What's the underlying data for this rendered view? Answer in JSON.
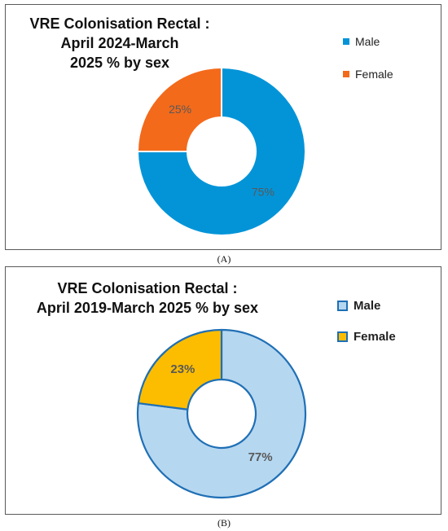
{
  "chart_data": [
    {
      "type": "pie",
      "title_lines": [
        "VRE Colonisation Rectal :",
        "April 2024-March",
        "2025 % by sex"
      ],
      "categories": [
        "Male",
        "Female"
      ],
      "values": [
        75,
        25
      ],
      "labels": [
        "75%",
        "25%"
      ],
      "colors": [
        "#0394d8",
        "#f36a1b"
      ],
      "slice_stroke": "#ffffff",
      "legend": {
        "position": "right",
        "entries": [
          "Male",
          "Female"
        ]
      },
      "caption": "(A)"
    },
    {
      "type": "pie",
      "title_lines": [
        "VRE Colonisation Rectal :",
        "April 2019-March 2025 % by sex"
      ],
      "categories": [
        "Male",
        "Female"
      ],
      "values": [
        77,
        23
      ],
      "labels": [
        "77%",
        "23%"
      ],
      "colors": [
        "#b6d7f0",
        "#fcbd00"
      ],
      "slice_stroke": "#1f6fb5",
      "legend": {
        "position": "right",
        "entries": [
          "Male",
          "Female"
        ]
      },
      "caption": "(B)"
    }
  ]
}
